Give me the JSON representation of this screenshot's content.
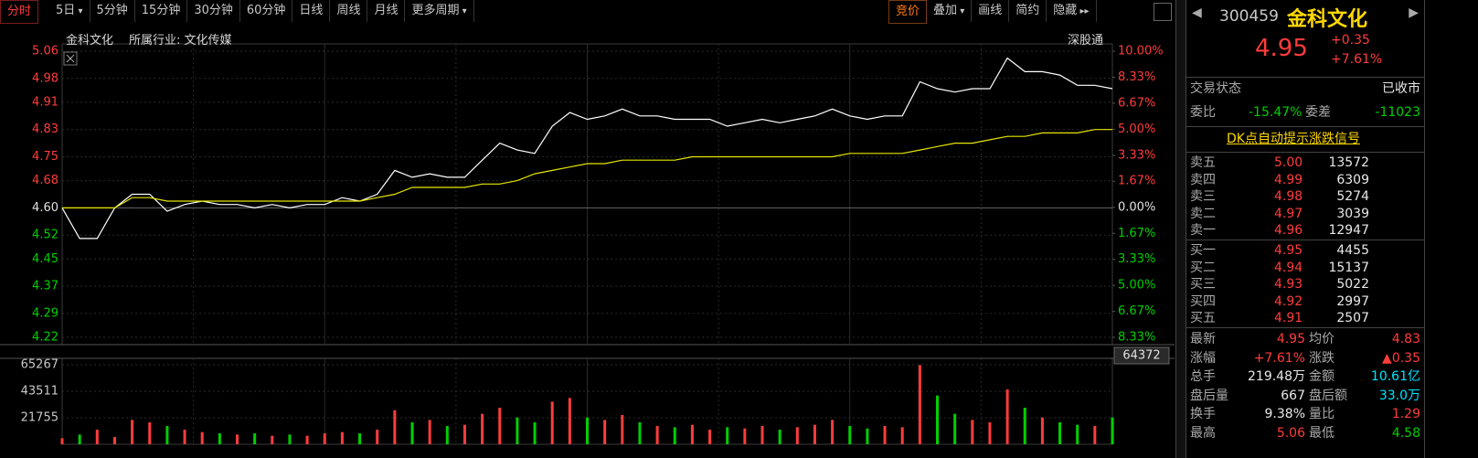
{
  "toolbar": {
    "left": [
      "分时",
      "5日",
      "5分钟",
      "15分钟",
      "30分钟",
      "60分钟",
      "日线",
      "周线",
      "月线",
      "更多周期"
    ],
    "right": [
      "竞价",
      "叠加",
      "画线",
      "简约",
      "隐藏"
    ]
  },
  "chart_header": {
    "name": "金科文化",
    "industry": "所属行业: 文化传媒",
    "tag": "深股通"
  },
  "chart_data": {
    "type": "intraday",
    "ylim": [
      4.22,
      5.06
    ],
    "yticks": [
      5.06,
      4.98,
      4.91,
      4.83,
      4.75,
      4.68,
      {
        "value": 4.6,
        "label": "4.60"
      },
      4.52,
      4.45,
      4.37,
      4.29,
      4.22
    ],
    "y2lim": [
      -8.33,
      10
    ],
    "y2ticks": [
      {
        "value": 10,
        "label": "10.00%"
      },
      {
        "value": 8.33,
        "label": "8.33%"
      },
      {
        "value": 6.67,
        "label": "6.67%"
      },
      {
        "value": 5,
        "label": "5.00%"
      },
      {
        "value": 3.33,
        "label": "3.33%"
      },
      {
        "value": 1.67,
        "label": "1.67%"
      },
      {
        "value": 0,
        "label": "0.00%"
      },
      {
        "value": -1.67,
        "label": "1.67%"
      },
      {
        "value": -3.33,
        "label": "3.33%"
      },
      {
        "value": -5,
        "label": "5.00%"
      },
      {
        "value": -6.67,
        "label": "6.67%"
      },
      {
        "value": -8.33,
        "label": "8.33%"
      }
    ],
    "up_color": "#ff3c3c",
    "down_color": "#00d000",
    "series": [
      {
        "color": "#ffffff",
        "values": [
          4.6,
          4.51,
          4.51,
          4.6,
          4.64,
          4.64,
          4.59,
          4.61,
          4.62,
          4.61,
          4.61,
          4.6,
          4.61,
          4.6,
          4.61,
          4.61,
          4.63,
          4.62,
          4.64,
          4.71,
          4.69,
          4.7,
          4.69,
          4.69,
          4.74,
          4.79,
          4.77,
          4.76,
          4.84,
          4.88,
          4.86,
          4.87,
          4.89,
          4.87,
          4.87,
          4.86,
          4.86,
          4.86,
          4.84,
          4.85,
          4.86,
          4.85,
          4.86,
          4.87,
          4.89,
          4.87,
          4.86,
          4.87,
          4.87,
          4.97,
          4.95,
          4.94,
          4.95,
          4.95,
          5.04,
          5.0,
          5.0,
          4.99,
          4.96,
          4.96,
          4.95
        ]
      },
      {
        "color": "#e6e600",
        "values": [
          4.6,
          4.6,
          4.6,
          4.6,
          4.63,
          4.63,
          4.62,
          4.62,
          4.62,
          4.62,
          4.62,
          4.62,
          4.62,
          4.62,
          4.62,
          4.62,
          4.62,
          4.62,
          4.63,
          4.64,
          4.66,
          4.66,
          4.66,
          4.66,
          4.67,
          4.67,
          4.68,
          4.7,
          4.71,
          4.72,
          4.73,
          4.73,
          4.74,
          4.74,
          4.74,
          4.74,
          4.75,
          4.75,
          4.75,
          4.75,
          4.75,
          4.75,
          4.75,
          4.75,
          4.75,
          4.76,
          4.76,
          4.76,
          4.76,
          4.77,
          4.78,
          4.79,
          4.79,
          4.8,
          4.81,
          4.81,
          4.82,
          4.82,
          4.82,
          4.83,
          4.83
        ]
      }
    ],
    "volume": {
      "ylim": [
        0,
        65267
      ],
      "yticks": [
        65267,
        43511,
        21755
      ],
      "readout": 64372,
      "values": [
        5000,
        8000,
        12000,
        6000,
        20000,
        18000,
        15000,
        12000,
        10000,
        9000,
        8000,
        9000,
        7000,
        8000,
        7000,
        9000,
        10000,
        9000,
        12000,
        28000,
        18000,
        20000,
        15000,
        16000,
        25000,
        30000,
        22000,
        18000,
        35000,
        38000,
        22000,
        20000,
        24000,
        18000,
        15000,
        14000,
        16000,
        12000,
        14000,
        13000,
        15000,
        12000,
        14000,
        16000,
        20000,
        15000,
        13000,
        15000,
        14000,
        65000,
        40000,
        25000,
        20000,
        18000,
        45000,
        30000,
        22000,
        18000,
        16000,
        15000,
        22000
      ]
    }
  },
  "quote": {
    "code": "300459",
    "name": "金科文化",
    "price": "4.95",
    "change": "+0.35",
    "pct": "+7.61%"
  },
  "status": {
    "label": "交易状态",
    "value": "已收市"
  },
  "ratio": {
    "label": "委比",
    "value": "-15.47%",
    "diff_label": "委差",
    "diff_value": "-11023"
  },
  "signal": "DK点自动提示涨跌信号",
  "asks": [
    {
      "label": "卖五",
      "price": "5.00",
      "volume": "13572"
    },
    {
      "label": "卖四",
      "price": "4.99",
      "volume": "6309"
    },
    {
      "label": "卖三",
      "price": "4.98",
      "volume": "5274"
    },
    {
      "label": "卖二",
      "price": "4.97",
      "volume": "3039"
    },
    {
      "label": "卖一",
      "price": "4.96",
      "volume": "12947"
    }
  ],
  "bids": [
    {
      "label": "买一",
      "price": "4.95",
      "volume": "4455"
    },
    {
      "label": "买二",
      "price": "4.94",
      "volume": "15137"
    },
    {
      "label": "买三",
      "price": "4.93",
      "volume": "5022"
    },
    {
      "label": "买四",
      "price": "4.92",
      "volume": "2997"
    },
    {
      "label": "买五",
      "price": "4.91",
      "volume": "2507"
    }
  ],
  "stats": [
    [
      {
        "label": "最新",
        "value": "4.95",
        "color": "#ff3c3c"
      },
      {
        "label": "均价",
        "value": "4.83",
        "color": "#ff3c3c"
      }
    ],
    [
      {
        "label": "涨幅",
        "value": "+7.61%",
        "color": "#ff3c3c"
      },
      {
        "label": "涨跌",
        "value": "▲0.35",
        "color": "#ff3c3c"
      }
    ],
    [
      {
        "label": "总手",
        "value": "219.48万",
        "color": "#e8e8e8"
      },
      {
        "label": "金额",
        "value": "10.61亿",
        "color": "#00e5ff"
      }
    ],
    [
      {
        "label": "盘后量",
        "value": "667",
        "color": "#e8e8e8"
      },
      {
        "label": "盘后额",
        "value": "33.0万",
        "color": "#00e5ff"
      }
    ],
    [
      {
        "label": "换手",
        "value": "9.38%",
        "color": "#e8e8e8"
      },
      {
        "label": "量比",
        "value": "1.29",
        "color": "#ff3c3c"
      }
    ],
    [
      {
        "label": "最高",
        "value": "5.06",
        "color": "#ff3c3c"
      },
      {
        "label": "最低",
        "value": "4.58",
        "color": "#00d000"
      }
    ]
  ]
}
